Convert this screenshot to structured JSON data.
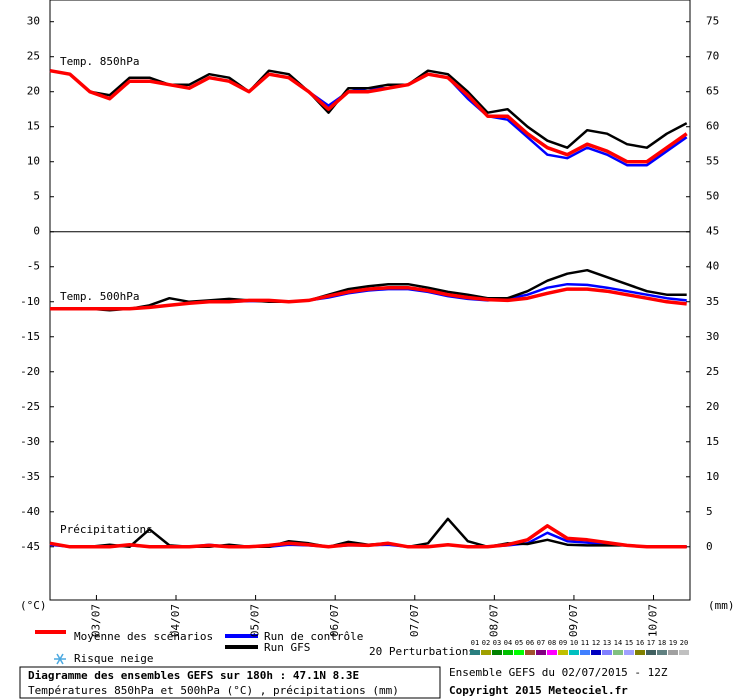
{
  "chart_data": {
    "type": "line",
    "x": [
      0,
      6,
      12,
      18,
      24,
      30,
      36,
      42,
      48,
      54,
      60,
      66,
      72,
      78,
      84,
      90,
      96,
      102,
      108,
      114,
      120,
      126,
      132,
      138,
      144,
      150,
      156,
      162,
      168,
      174,
      180,
      186,
      192
    ],
    "xlim": [
      0,
      193
    ],
    "xticks": [
      {
        "value": 14,
        "label": "03/07"
      },
      {
        "value": 38,
        "label": "04/07"
      },
      {
        "value": 62,
        "label": "05/07"
      },
      {
        "value": 86,
        "label": "06/07"
      },
      {
        "value": 110,
        "label": "07/07"
      },
      {
        "value": 134,
        "label": "08/07"
      },
      {
        "value": 158,
        "label": "09/07"
      },
      {
        "value": 182,
        "label": "10/07"
      }
    ],
    "ylim": [
      -52.6,
      33.1
    ],
    "yticks": [
      30,
      25,
      20,
      15,
      10,
      5,
      0,
      -5,
      -10,
      -15,
      -20,
      -25,
      -30,
      -35,
      -40,
      -45
    ],
    "y2lim": [
      -7.6,
      78.1
    ],
    "y2ticks": [
      75,
      70,
      65,
      60,
      55,
      50,
      45,
      40,
      35,
      30,
      25,
      20,
      15,
      10,
      5,
      0
    ],
    "ylabel": "(°C)",
    "y2label": "(mm)",
    "series": [
      {
        "name": "Run de contrôle",
        "color": "#0000ff"
      },
      {
        "name": "Run GFS",
        "color": "#000000"
      },
      {
        "name": "Moyenne des scénarios",
        "color": "#ff0000"
      }
    ],
    "panels": [
      {
        "label": "Temp. 850hPa",
        "axis": "y",
        "values": [
          [
            23,
            22.5,
            20,
            19,
            21.5,
            21.5,
            21,
            20.5,
            22,
            21.5,
            20,
            22.5,
            22,
            20,
            18,
            20,
            20.5,
            20.5,
            21,
            22.5,
            22,
            19,
            16.5,
            16,
            13.5,
            11,
            10.5,
            12,
            11,
            9.5,
            9.5,
            11.5,
            13.5
          ],
          [
            23,
            22.5,
            20,
            19.5,
            22,
            22,
            21,
            21,
            22.5,
            22,
            20,
            23,
            22.5,
            20,
            17,
            20.5,
            20.5,
            21,
            21,
            23,
            22.5,
            20,
            17,
            17.5,
            15,
            13,
            12,
            14.5,
            14,
            12.5,
            12,
            14,
            15.5
          ],
          [
            23,
            22.5,
            20,
            19,
            21.5,
            21.5,
            21,
            20.5,
            22,
            21.5,
            20,
            22.5,
            22,
            20,
            17.5,
            20,
            20,
            20.5,
            21,
            22.5,
            22,
            19.5,
            16.5,
            16.5,
            14,
            12,
            11,
            12.5,
            11.5,
            10,
            10,
            12,
            14
          ]
        ]
      },
      {
        "label": "Temp. 500hPa",
        "axis": "y",
        "values": [
          [
            -11,
            -11,
            -11,
            -11,
            -11,
            -10.8,
            -10.5,
            -10.2,
            -10,
            -10,
            -9.9,
            -9.9,
            -10,
            -9.8,
            -9.4,
            -8.8,
            -8.4,
            -8.2,
            -8.2,
            -8.6,
            -9.2,
            -9.6,
            -9.8,
            -9.6,
            -9,
            -8,
            -7.5,
            -7.6,
            -8,
            -8.5,
            -9,
            -9.5,
            -9.8
          ],
          [
            -11,
            -11,
            -11,
            -11.2,
            -11,
            -10.5,
            -9.5,
            -10,
            -9.8,
            -9.6,
            -9.8,
            -10,
            -10,
            -9.8,
            -9,
            -8.2,
            -7.8,
            -7.5,
            -7.5,
            -8,
            -8.6,
            -9,
            -9.5,
            -9.5,
            -8.5,
            -7,
            -6,
            -5.5,
            -6.5,
            -7.5,
            -8.5,
            -9,
            -9
          ],
          [
            -11,
            -11,
            -11,
            -11,
            -11,
            -10.8,
            -10.5,
            -10.2,
            -10,
            -10,
            -9.8,
            -9.8,
            -10,
            -9.8,
            -9.2,
            -8.6,
            -8.2,
            -8,
            -8,
            -8.4,
            -9,
            -9.4,
            -9.7,
            -9.8,
            -9.5,
            -8.8,
            -8.2,
            -8.2,
            -8.5,
            -9,
            -9.5,
            -10,
            -10.3
          ]
        ]
      },
      {
        "label": "Précipitations",
        "axis": "y2",
        "values": [
          [
            0.3,
            0,
            0,
            0,
            0.2,
            0,
            0,
            0,
            0.3,
            0,
            0,
            0,
            0.3,
            0.2,
            0,
            0.2,
            0.2,
            0.3,
            0,
            0,
            0.3,
            0,
            0,
            0.2,
            0.5,
            2,
            0.8,
            0.6,
            0.3,
            0.2,
            0,
            0,
            0
          ],
          [
            0.5,
            0,
            0,
            0.3,
            0,
            2.5,
            0.2,
            0,
            0,
            0.3,
            0,
            0,
            0.8,
            0.5,
            0,
            0.7,
            0.3,
            0.5,
            0,
            0.5,
            4,
            0.8,
            0,
            0.5,
            0.4,
            1,
            0.3,
            0.2,
            0.2,
            0.2,
            0,
            0,
            0
          ],
          [
            0.5,
            0,
            0,
            0,
            0.3,
            0,
            0,
            0,
            0.2,
            0,
            0,
            0.2,
            0.5,
            0.3,
            0,
            0.3,
            0.2,
            0.5,
            0,
            0,
            0.3,
            0,
            0,
            0.3,
            1,
            3,
            1.2,
            1,
            0.6,
            0.2,
            0,
            0,
            0
          ]
        ]
      }
    ],
    "snow_label": "Risque neige",
    "perturbations_label": "20 Perturbations",
    "perturbations": [
      {
        "label": "01",
        "color": "#2a7f7f"
      },
      {
        "label": "02",
        "color": "#a0a000"
      },
      {
        "label": "03",
        "color": "#008000"
      },
      {
        "label": "04",
        "color": "#00c000"
      },
      {
        "label": "05",
        "color": "#00ff00"
      },
      {
        "label": "06",
        "color": "#a0522d"
      },
      {
        "label": "07",
        "color": "#800080"
      },
      {
        "label": "08",
        "color": "#ff00ff"
      },
      {
        "label": "09",
        "color": "#c0c000"
      },
      {
        "label": "10",
        "color": "#00c0c0"
      },
      {
        "label": "11",
        "color": "#4080ff"
      },
      {
        "label": "12",
        "color": "#0000c0"
      },
      {
        "label": "13",
        "color": "#8080ff"
      },
      {
        "label": "14",
        "color": "#80c080"
      },
      {
        "label": "15",
        "color": "#a0a0ff"
      },
      {
        "label": "16",
        "color": "#808000"
      },
      {
        "label": "17",
        "color": "#406060"
      },
      {
        "label": "18",
        "color": "#608080"
      },
      {
        "label": "19",
        "color": "#a0a0a0"
      },
      {
        "label": "20",
        "color": "#c0c0c0"
      }
    ],
    "footer_title": "Diagramme des ensembles GEFS sur 180h : 47.1N 8.3E",
    "footer_subtitle": "Températures 850hPa et 500hPa (°C) , précipitations (mm)",
    "run_label": "Ensemble GEFS du 02/07/2015 - 12Z",
    "copyright": "Copyright 2015 Meteociel.fr"
  }
}
